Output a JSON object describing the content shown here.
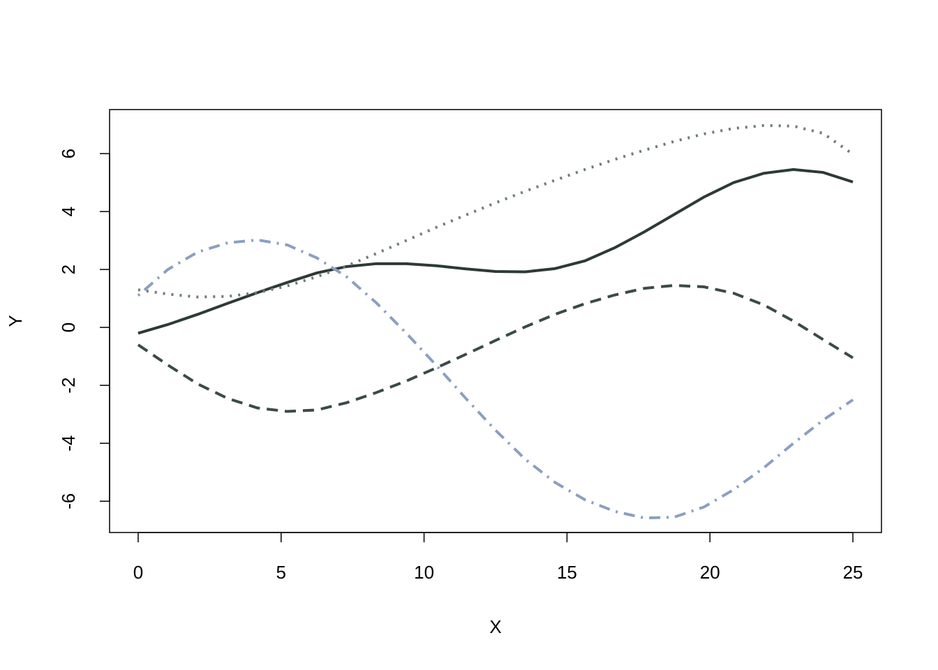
{
  "chart_data": {
    "type": "line",
    "x_label": "X",
    "y_label": "Y",
    "x": [
      0,
      1.04,
      2.08,
      3.13,
      4.17,
      5.21,
      6.25,
      7.29,
      8.33,
      9.38,
      10.42,
      11.46,
      12.5,
      13.54,
      14.58,
      15.63,
      16.67,
      17.71,
      18.75,
      19.79,
      20.83,
      21.88,
      22.92,
      23.96,
      25
    ],
    "series": [
      {
        "color": "#2d3a35",
        "linestyle": "solid",
        "values": [
          -0.2,
          0.1,
          0.45,
          0.83,
          1.2,
          1.55,
          1.88,
          2.1,
          2.2,
          2.2,
          2.13,
          2.02,
          1.93,
          1.92,
          2.03,
          2.3,
          2.75,
          3.3,
          3.9,
          4.5,
          5.0,
          5.32,
          5.45,
          5.35,
          5.02
        ]
      },
      {
        "color": "#3b4a4a",
        "linestyle": "dashed",
        "values": [
          -0.6,
          -1.3,
          -1.95,
          -2.45,
          -2.78,
          -2.9,
          -2.85,
          -2.6,
          -2.25,
          -1.85,
          -1.4,
          -0.93,
          -0.45,
          0.02,
          0.45,
          0.82,
          1.12,
          1.35,
          1.45,
          1.4,
          1.18,
          0.78,
          0.22,
          -0.42,
          -1.05
        ]
      },
      {
        "color": "#6e7d78",
        "linestyle": "dotted",
        "values": [
          1.3,
          1.15,
          1.05,
          1.07,
          1.2,
          1.43,
          1.75,
          2.12,
          2.55,
          3.0,
          3.45,
          3.88,
          4.3,
          4.7,
          5.08,
          5.45,
          5.8,
          6.12,
          6.42,
          6.68,
          6.87,
          6.97,
          6.95,
          6.7,
          5.98
        ]
      },
      {
        "color": "#8aa0c2",
        "linestyle": "dashdot",
        "values": [
          1.1,
          2.0,
          2.6,
          2.92,
          3.02,
          2.85,
          2.4,
          1.75,
          0.85,
          -0.2,
          -1.3,
          -2.45,
          -3.55,
          -4.55,
          -5.35,
          -5.95,
          -6.35,
          -6.58,
          -6.55,
          -6.2,
          -5.6,
          -4.85,
          -4.0,
          -3.2,
          -2.5
        ]
      }
    ],
    "xlim": [
      -1,
      26
    ],
    "ylim": [
      -7.08,
      7.52
    ],
    "xticks": [
      0,
      5,
      10,
      15,
      20,
      25
    ],
    "yticks": [
      -6,
      -4,
      -2,
      0,
      2,
      4,
      6
    ],
    "grid": false
  }
}
